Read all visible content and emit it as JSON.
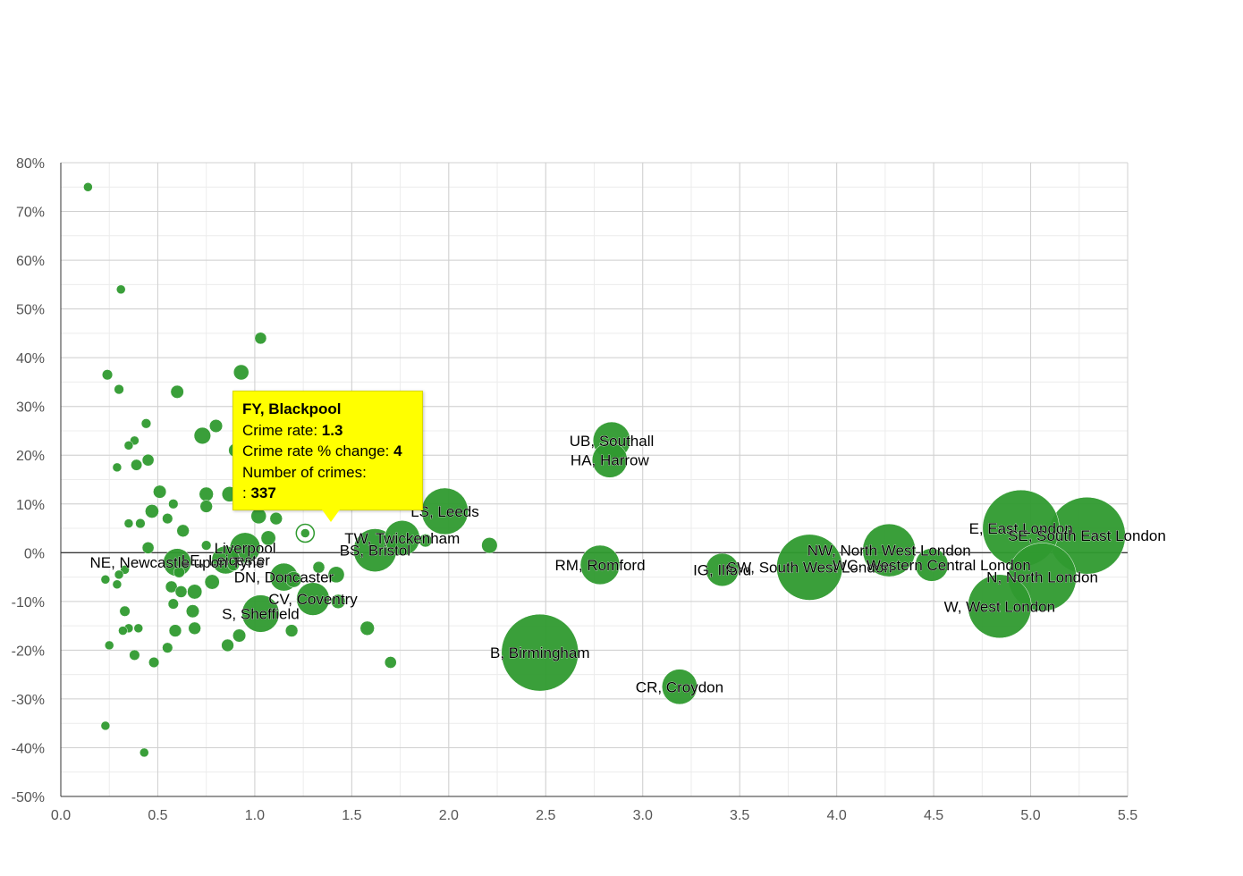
{
  "chart_data": {
    "type": "scatter",
    "title": "",
    "xlabel": "",
    "ylabel": "",
    "xlim": [
      0,
      5.5
    ],
    "ylim": [
      -50,
      80
    ],
    "x_ticks": [
      "0.0",
      "0.5",
      "1.0",
      "1.5",
      "2.0",
      "2.5",
      "3.0",
      "3.5",
      "4.0",
      "4.5",
      "5.0",
      "5.5"
    ],
    "y_ticks": [
      "80%",
      "70%",
      "60%",
      "50%",
      "40%",
      "30%",
      "20%",
      "10%",
      "0%",
      "-10%",
      "-20%",
      "-30%",
      "-40%",
      "-50%"
    ],
    "grid": true,
    "bubble_color": "#2f9a2f",
    "tooltip_color": "#ffff00",
    "labeled_points": [
      {
        "label": "UB, Southall",
        "x": 2.84,
        "y": 23,
        "crimes": 9000
      },
      {
        "label": "HA, Harrow",
        "x": 2.83,
        "y": 19,
        "crimes": 8000
      },
      {
        "label": "LS, Leeds",
        "x": 1.98,
        "y": 8.5,
        "crimes": 14000
      },
      {
        "label": "TW, Twickenham",
        "x": 1.76,
        "y": 3,
        "crimes": 8000
      },
      {
        "label": "BS, Bristol",
        "x": 1.62,
        "y": 0.5,
        "crimes": 12000
      },
      {
        "label": "Liverpool",
        "x": 0.95,
        "y": 1,
        "crimes": 6000
      },
      {
        "label": "LE, Leicester",
        "x": 0.85,
        "y": -1.5,
        "crimes": 5000
      },
      {
        "label": "NE, Newcastle upon Tyne",
        "x": 0.6,
        "y": -2,
        "crimes": 5000
      },
      {
        "label": "DN, Doncaster",
        "x": 1.15,
        "y": -5,
        "crimes": 5000
      },
      {
        "label": "CV, Coventry",
        "x": 1.3,
        "y": -9.5,
        "crimes": 7000
      },
      {
        "label": "S, Sheffield",
        "x": 1.03,
        "y": -12.5,
        "crimes": 9000
      },
      {
        "label": "B, Birmingham",
        "x": 2.47,
        "y": -20.5,
        "crimes": 40000
      },
      {
        "label": "CR, Croydon",
        "x": 3.19,
        "y": -27.5,
        "crimes": 8000
      },
      {
        "label": "RM, Romford",
        "x": 2.78,
        "y": -2.5,
        "crimes": 10000
      },
      {
        "label": "IG, Ilford",
        "x": 3.41,
        "y": -3.5,
        "crimes": 7000
      },
      {
        "label": "SW, South West London",
        "x": 3.86,
        "y": -3,
        "crimes": 28000
      },
      {
        "label": "NW, North West London",
        "x": 4.27,
        "y": 0.5,
        "crimes": 18000
      },
      {
        "label": "WC, Western Central London",
        "x": 4.49,
        "y": -2.5,
        "crimes": 7000
      },
      {
        "label": "E, East London",
        "x": 4.95,
        "y": 5,
        "crimes": 38000
      },
      {
        "label": "SE, South East London",
        "x": 5.29,
        "y": 3.5,
        "crimes": 40000
      },
      {
        "label": "N, North London",
        "x": 5.06,
        "y": -5,
        "crimes": 30000
      },
      {
        "label": "W, West London",
        "x": 4.84,
        "y": -11,
        "crimes": 26000
      }
    ],
    "points": [
      {
        "x": 0.14,
        "y": 75,
        "crimes": 300
      },
      {
        "x": 0.31,
        "y": 54,
        "crimes": 500
      },
      {
        "x": 1.03,
        "y": 44,
        "crimes": 900
      },
      {
        "x": 0.24,
        "y": 36.5,
        "crimes": 700
      },
      {
        "x": 0.3,
        "y": 33.5,
        "crimes": 600
      },
      {
        "x": 0.93,
        "y": 37,
        "crimes": 1500
      },
      {
        "x": 0.6,
        "y": 33,
        "crimes": 1100
      },
      {
        "x": 0.44,
        "y": 26.5,
        "crimes": 600
      },
      {
        "x": 0.8,
        "y": 26,
        "crimes": 1100
      },
      {
        "x": 0.73,
        "y": 24,
        "crimes": 1800
      },
      {
        "x": 0.38,
        "y": 23,
        "crimes": 500
      },
      {
        "x": 0.35,
        "y": 22,
        "crimes": 400
      },
      {
        "x": 0.9,
        "y": 21,
        "crimes": 1200
      },
      {
        "x": 0.45,
        "y": 19,
        "crimes": 900
      },
      {
        "x": 0.39,
        "y": 18,
        "crimes": 800
      },
      {
        "x": 0.29,
        "y": 17.5,
        "crimes": 400
      },
      {
        "x": 0.75,
        "y": 12,
        "crimes": 1300
      },
      {
        "x": 0.87,
        "y": 12,
        "crimes": 1500
      },
      {
        "x": 0.51,
        "y": 12.5,
        "crimes": 1100
      },
      {
        "x": 0.58,
        "y": 10,
        "crimes": 600
      },
      {
        "x": 0.75,
        "y": 9.5,
        "crimes": 1000
      },
      {
        "x": 0.47,
        "y": 8.5,
        "crimes": 1200
      },
      {
        "x": 1.02,
        "y": 7.5,
        "crimes": 1500
      },
      {
        "x": 1.11,
        "y": 7,
        "crimes": 1000
      },
      {
        "x": 0.55,
        "y": 7,
        "crimes": 700
      },
      {
        "x": 0.41,
        "y": 6,
        "crimes": 600
      },
      {
        "x": 0.35,
        "y": 6,
        "crimes": 500
      },
      {
        "x": 0.63,
        "y": 4.5,
        "crimes": 1000
      },
      {
        "x": 1.26,
        "y": 4,
        "crimes": 337,
        "highlighted": true
      },
      {
        "x": 1.07,
        "y": 3,
        "crimes": 1400
      },
      {
        "x": 0.45,
        "y": 1,
        "crimes": 900
      },
      {
        "x": 0.75,
        "y": 1.5,
        "crimes": 600
      },
      {
        "x": 0.33,
        "y": -3.5,
        "crimes": 400
      },
      {
        "x": 0.3,
        "y": -4.5,
        "crimes": 400
      },
      {
        "x": 0.61,
        "y": -4,
        "crimes": 800
      },
      {
        "x": 0.89,
        "y": -2.5,
        "crimes": 900
      },
      {
        "x": 1.33,
        "y": -3,
        "crimes": 900
      },
      {
        "x": 1.42,
        "y": -4.5,
        "crimes": 1700
      },
      {
        "x": 0.23,
        "y": -5.5,
        "crimes": 400
      },
      {
        "x": 0.29,
        "y": -6.5,
        "crimes": 400
      },
      {
        "x": 0.78,
        "y": -6,
        "crimes": 1400
      },
      {
        "x": 1.2,
        "y": -5.5,
        "crimes": 1600
      },
      {
        "x": 0.57,
        "y": -7,
        "crimes": 900
      },
      {
        "x": 0.62,
        "y": -8,
        "crimes": 900
      },
      {
        "x": 0.69,
        "y": -8,
        "crimes": 1400
      },
      {
        "x": 1.43,
        "y": -10,
        "crimes": 1300
      },
      {
        "x": 0.58,
        "y": -10.5,
        "crimes": 700
      },
      {
        "x": 0.33,
        "y": -12,
        "crimes": 700
      },
      {
        "x": 0.68,
        "y": -12,
        "crimes": 1100
      },
      {
        "x": 0.92,
        "y": -17,
        "crimes": 1100
      },
      {
        "x": 1.58,
        "y": -15.5,
        "crimes": 1300
      },
      {
        "x": 0.35,
        "y": -15.5,
        "crimes": 500
      },
      {
        "x": 0.4,
        "y": -15.5,
        "crimes": 500
      },
      {
        "x": 0.32,
        "y": -16,
        "crimes": 500
      },
      {
        "x": 0.59,
        "y": -16,
        "crimes": 1000
      },
      {
        "x": 0.69,
        "y": -15.5,
        "crimes": 1000
      },
      {
        "x": 1.19,
        "y": -16,
        "crimes": 1000
      },
      {
        "x": 0.25,
        "y": -19,
        "crimes": 400
      },
      {
        "x": 0.55,
        "y": -19.5,
        "crimes": 700
      },
      {
        "x": 0.86,
        "y": -19,
        "crimes": 1000
      },
      {
        "x": 0.38,
        "y": -21,
        "crimes": 700
      },
      {
        "x": 0.48,
        "y": -22.5,
        "crimes": 700
      },
      {
        "x": 1.7,
        "y": -22.5,
        "crimes": 900
      },
      {
        "x": 0.23,
        "y": -35.5,
        "crimes": 400
      },
      {
        "x": 0.43,
        "y": -41,
        "crimes": 400
      },
      {
        "x": 1.88,
        "y": 2.5,
        "crimes": 1100
      },
      {
        "x": 2.21,
        "y": 1.5,
        "crimes": 1600
      }
    ]
  },
  "tooltip": {
    "area": "FY, Blackpool",
    "crime_rate_label": "Crime rate: ",
    "crime_rate_value": "1.3",
    "change_label": "Crime rate % change: ",
    "change_value": "4",
    "crimes_label": "Number of crimes:",
    "crimes_prefix": ": ",
    "crimes_value": "337"
  }
}
